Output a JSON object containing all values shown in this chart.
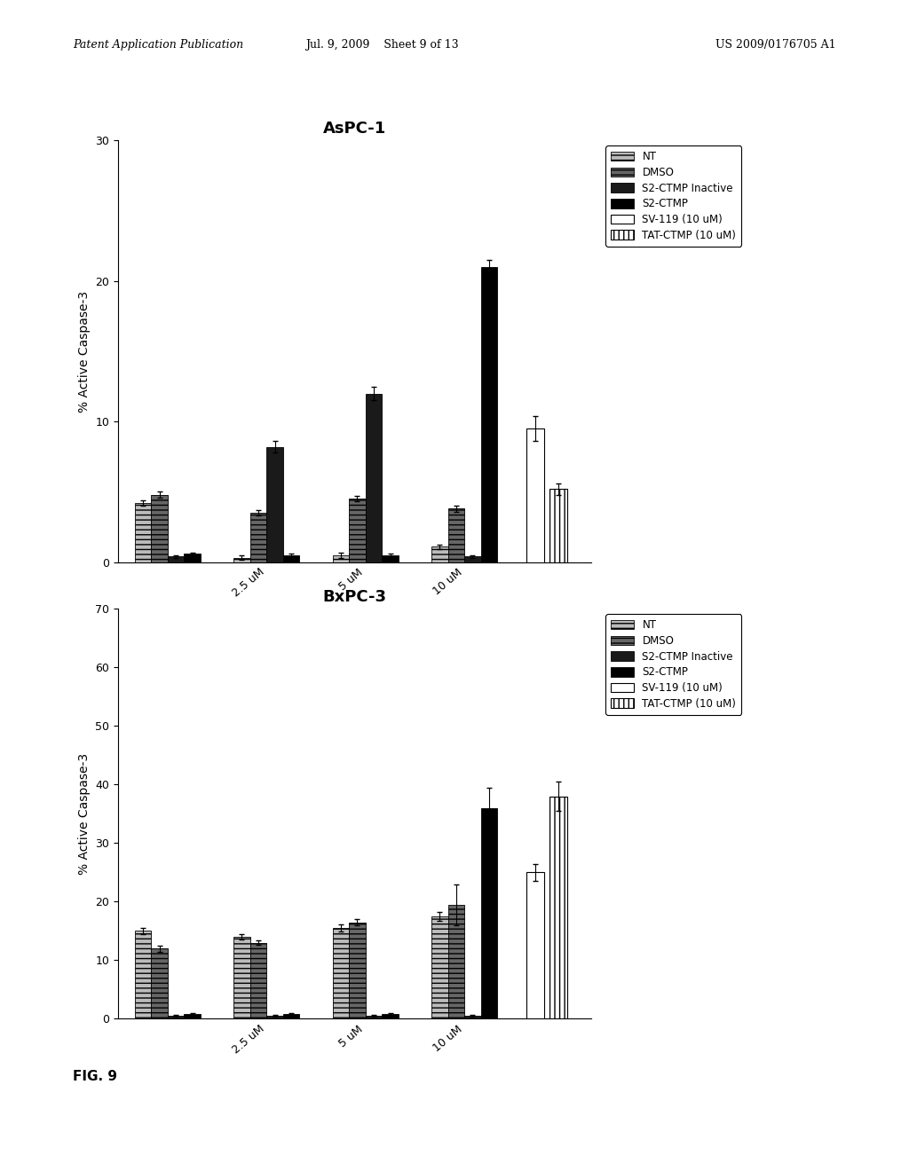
{
  "chart1": {
    "title": "AsPC-1",
    "ylabel": "% Active Caspase-3",
    "ylim": [
      0,
      30
    ],
    "yticks": [
      0,
      10,
      20,
      30
    ],
    "groups": [
      "NT",
      "2.5 uM",
      "5 uM",
      "10 uM"
    ],
    "bars": {
      "NT": [
        4.2,
        0.3,
        0.5,
        1.1
      ],
      "DMSO": [
        4.8,
        3.5,
        4.5,
        3.8
      ],
      "S2CTMP_Inactive": [
        0.4,
        8.2,
        12.0,
        0.4
      ],
      "S2CTMP": [
        0.6,
        0.5,
        0.5,
        21.0
      ]
    },
    "errors": {
      "NT": [
        0.2,
        0.15,
        0.2,
        0.15
      ],
      "DMSO": [
        0.2,
        0.2,
        0.2,
        0.2
      ],
      "S2CTMP_Inactive": [
        0.1,
        0.4,
        0.5,
        0.1
      ],
      "S2CTMP": [
        0.1,
        0.1,
        0.1,
        0.5
      ]
    },
    "extra_bars": {
      "SV119": {
        "value": 9.5,
        "error": 0.9
      },
      "TAT_CTMP": {
        "value": 5.2,
        "error": 0.4
      }
    }
  },
  "chart2": {
    "title": "BxPC-3",
    "ylabel": "% Active Caspase-3",
    "ylim": [
      0,
      70
    ],
    "yticks": [
      0,
      10,
      20,
      30,
      40,
      50,
      60,
      70
    ],
    "groups": [
      "NT",
      "2.5 uM",
      "5 uM",
      "10 uM"
    ],
    "bars": {
      "NT": [
        15.0,
        14.0,
        15.5,
        17.5
      ],
      "DMSO": [
        12.0,
        13.0,
        16.5,
        19.5
      ],
      "S2CTMP_Inactive": [
        0.5,
        0.5,
        0.5,
        0.5
      ],
      "S2CTMP": [
        0.8,
        0.8,
        0.8,
        36.0
      ]
    },
    "errors": {
      "NT": [
        0.5,
        0.5,
        0.6,
        0.8
      ],
      "DMSO": [
        0.5,
        0.4,
        0.5,
        3.5
      ],
      "S2CTMP_Inactive": [
        0.2,
        0.2,
        0.2,
        0.2
      ],
      "S2CTMP": [
        0.2,
        0.2,
        0.2,
        3.5
      ]
    },
    "extra_bars": {
      "SV119": {
        "value": 25.0,
        "error": 1.5
      },
      "TAT_CTMP": {
        "value": 38.0,
        "error": 2.5
      }
    }
  },
  "header_left": "Patent Application Publication",
  "header_mid": "Jul. 9, 2009    Sheet 9 of 13",
  "header_right": "US 2009/0176705 A1",
  "figure_label": "FIG. 9",
  "background_color": "#ffffff"
}
